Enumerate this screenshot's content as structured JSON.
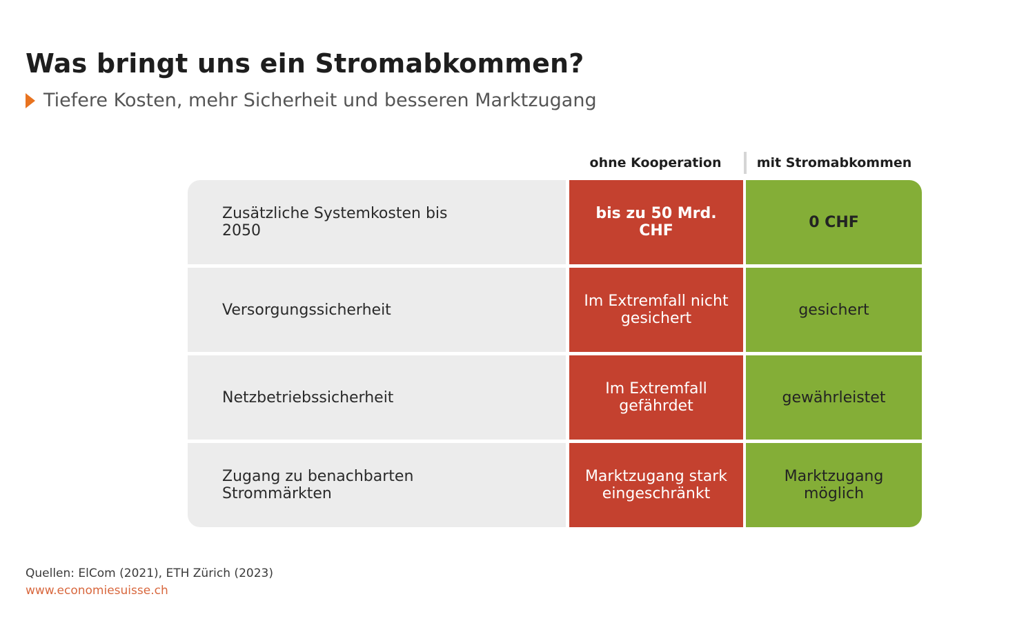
{
  "title": "Was bringt uns ein Stromabkommen?",
  "subtitle": "Tiefere Kosten, mehr Sicherheit und besseren Marktzugang",
  "colors": {
    "accent_arrow": "#e8731f",
    "ohne_cell": "#c4412f",
    "mit_cell": "#84ae37",
    "label_cell": "#ececec",
    "website_link": "#d8673d"
  },
  "chart_data": {
    "type": "table",
    "columns": [
      "",
      "ohne Kooperation",
      "mit Stromabkommen"
    ],
    "rows": [
      {
        "label": "Zusätzliche Systemkosten bis 2050",
        "ohne": "bis zu 50 Mrd. CHF",
        "mit": "0 CHF"
      },
      {
        "label": "Versorgungssicherheit",
        "ohne": "Im Extremfall nicht gesichert",
        "mit": "gesichert"
      },
      {
        "label": "Netzbetriebssicherheit",
        "ohne": "Im Extremfall gefährdet",
        "mit": "gewährleistet"
      },
      {
        "label": "Zugang zu benachbarten Strommärkten",
        "ohne": "Marktzugang stark eingeschränkt",
        "mit": "Marktzugang möglich"
      }
    ]
  },
  "footer": {
    "source": "Quellen: ElCom (2021), ETH Zürich (2023)",
    "website": "www.economiesuisse.ch"
  }
}
